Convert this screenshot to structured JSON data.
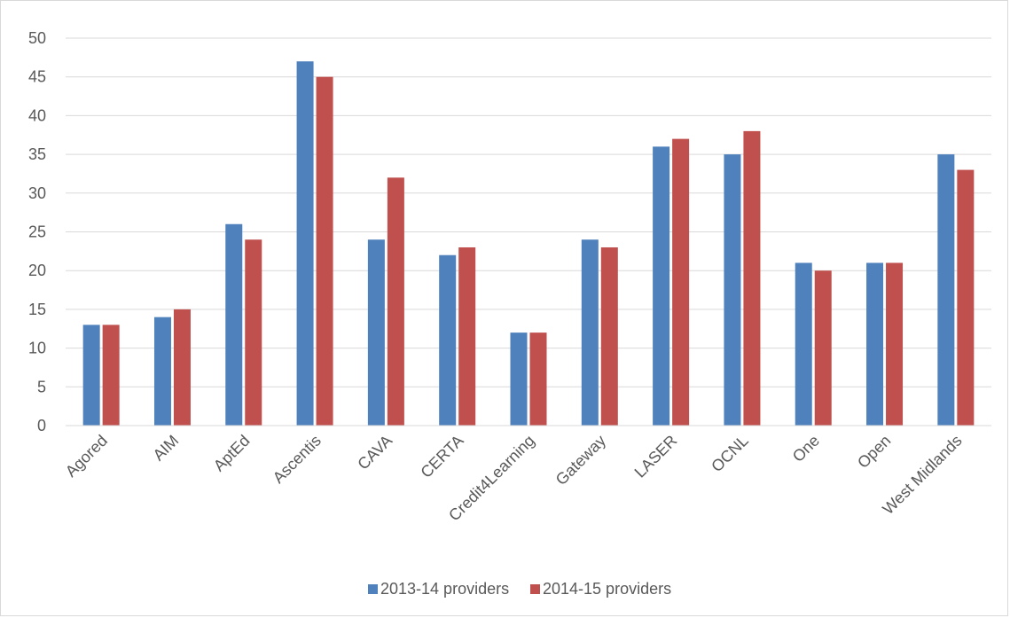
{
  "chart_data": {
    "type": "bar",
    "title": "",
    "xlabel": "",
    "ylabel": "",
    "ylim": [
      0,
      50
    ],
    "y_ticks": [
      0,
      5,
      10,
      15,
      20,
      25,
      30,
      35,
      40,
      45,
      50
    ],
    "grid": "horizontal",
    "legend_position": "bottom",
    "categories": [
      "Agored",
      "AIM",
      "AptEd",
      "Ascentis",
      "CAVA",
      "CERTA",
      "Credit4Learning",
      "Gateway",
      "LASER",
      "OCNL",
      "One",
      "Open",
      "West Midlands"
    ],
    "series": [
      {
        "name": "2013-14 providers",
        "color": "#4f81bd",
        "values": [
          13,
          14,
          26,
          47,
          24,
          22,
          12,
          24,
          36,
          35,
          21,
          21,
          35
        ]
      },
      {
        "name": "2014-15 providers",
        "color": "#c0504d",
        "values": [
          13,
          15,
          24,
          45,
          32,
          23,
          12,
          23,
          37,
          38,
          20,
          21,
          33
        ]
      }
    ]
  }
}
